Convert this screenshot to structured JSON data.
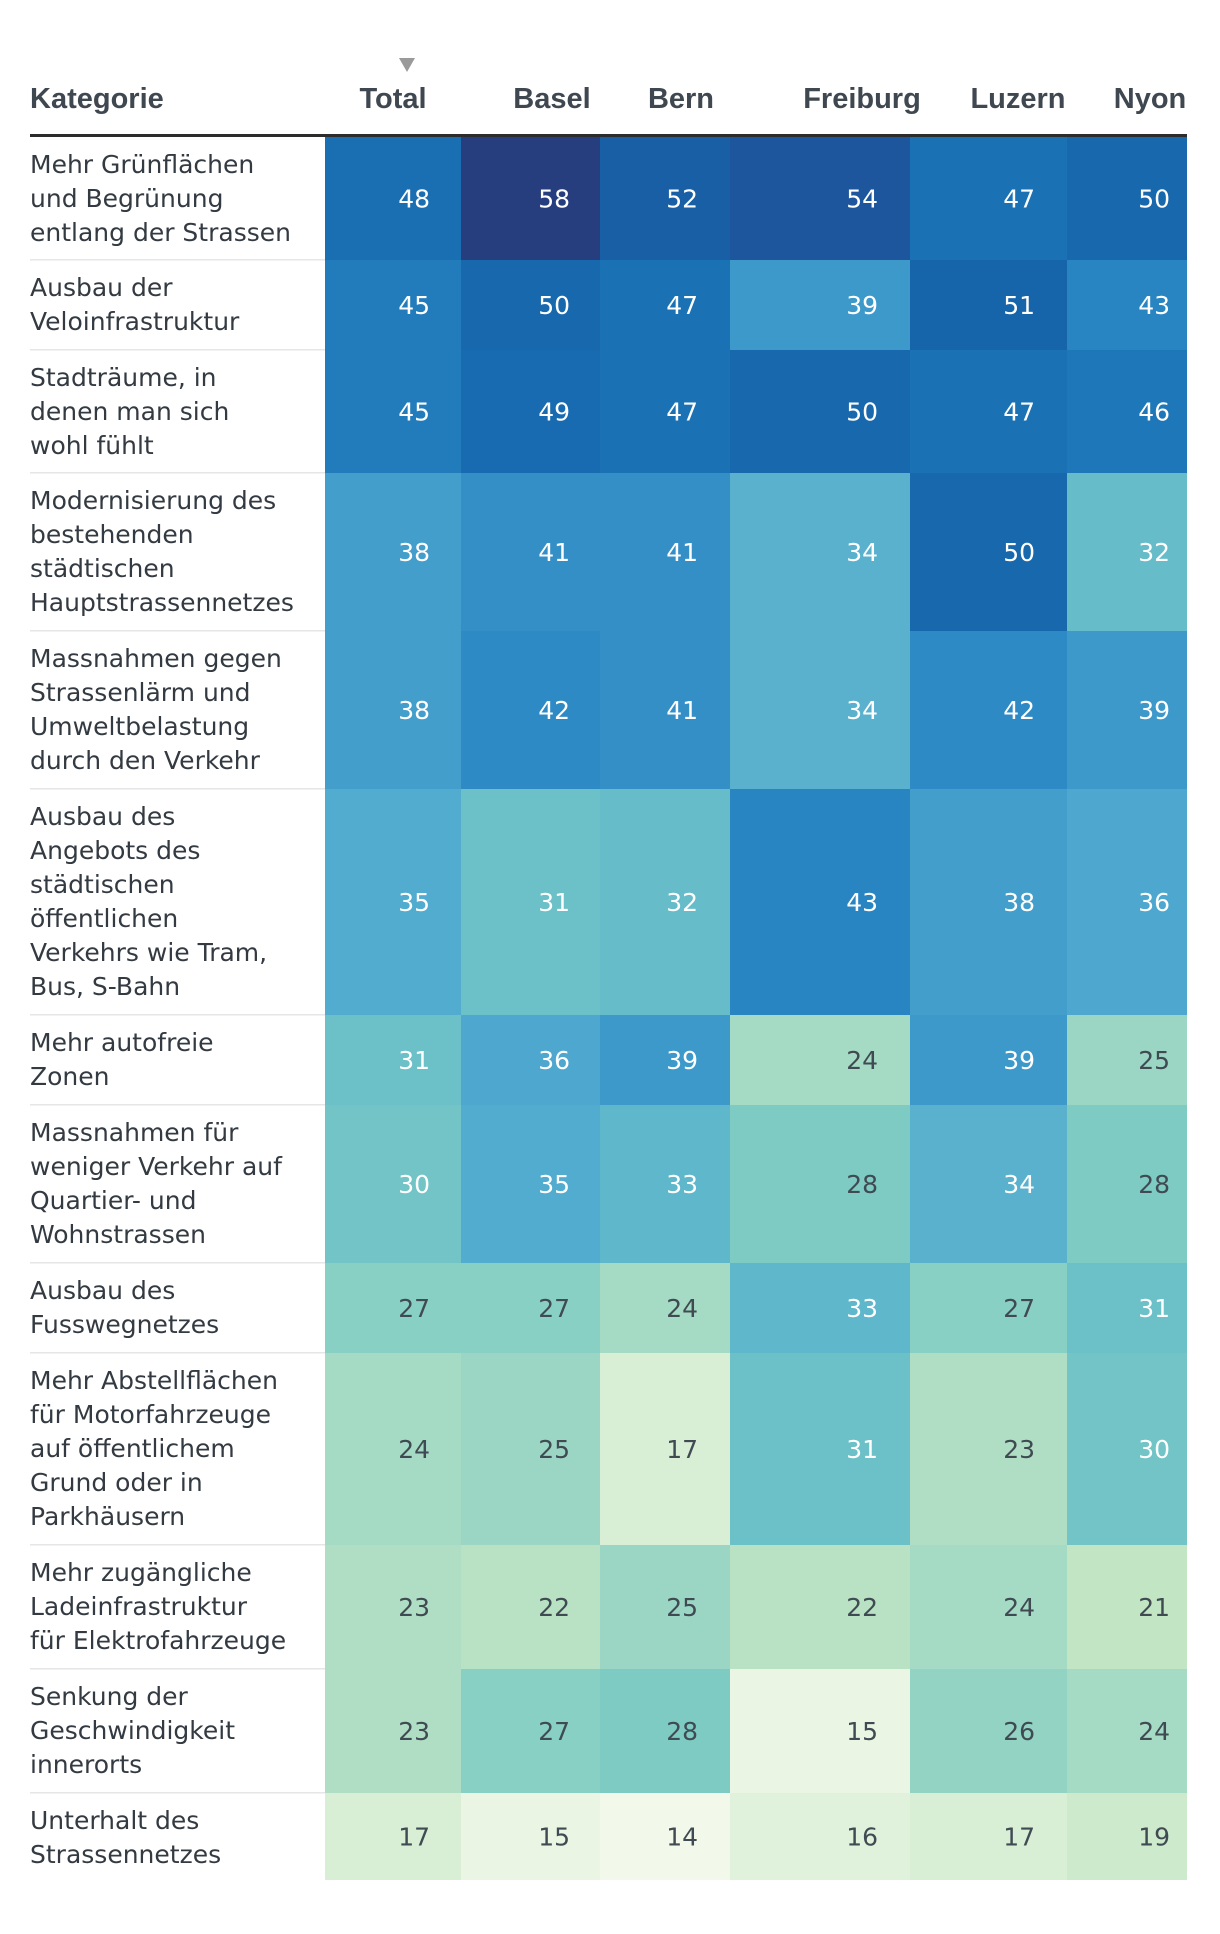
{
  "chart_data": {
    "type": "heatmap",
    "header_first": "Kategorie",
    "columns": [
      "Total",
      "Basel",
      "Bern",
      "Freiburg",
      "Luzern",
      "Nyon"
    ],
    "sorted_column": "Total",
    "sort_direction": "descending",
    "sort_icon": "triangle-down-icon",
    "rows": [
      {
        "label": "Mehr Grünflächen und Begrünung entlang der Strassen",
        "lines": [
          "Mehr Grünflächen",
          "und Begrünung",
          "entlang der Strassen"
        ],
        "values": [
          48,
          58,
          52,
          54,
          47,
          50
        ]
      },
      {
        "label": "Ausbau der Veloinfrastruktur",
        "lines": [
          "Ausbau der",
          "Veloinfrastruktur"
        ],
        "values": [
          45,
          50,
          47,
          39,
          51,
          43
        ]
      },
      {
        "label": "Stadträume, in denen man sich wohl fühlt",
        "lines": [
          "Stadträume, in",
          "denen man sich",
          "wohl fühlt"
        ],
        "values": [
          45,
          49,
          47,
          50,
          47,
          46
        ]
      },
      {
        "label": "Modernisierung des bestehenden städtischen Hauptstrassennetzes",
        "lines": [
          "Modernisierung des",
          "bestehenden",
          "städtischen",
          "Hauptstrassennetzes"
        ],
        "values": [
          38,
          41,
          41,
          34,
          50,
          32
        ]
      },
      {
        "label": "Massnahmen gegen Strassenlärm und Umweltbelastung durch den Verkehr",
        "lines": [
          "Massnahmen gegen",
          "Strassenlärm und",
          "Umweltbelastung",
          "durch den Verkehr"
        ],
        "values": [
          38,
          42,
          41,
          34,
          42,
          39
        ]
      },
      {
        "label": "Ausbau des Angebots des städtischen öffentlichen Verkehrs wie Tram, Bus, S-Bahn",
        "lines": [
          "Ausbau des",
          "Angebots des",
          "städtischen",
          "öffentlichen",
          "Verkehrs wie Tram,",
          "Bus, S-Bahn"
        ],
        "values": [
          35,
          31,
          32,
          43,
          38,
          36
        ]
      },
      {
        "label": "Mehr autofreie Zonen",
        "lines": [
          "Mehr autofreie",
          "Zonen"
        ],
        "values": [
          31,
          36,
          39,
          24,
          39,
          25
        ]
      },
      {
        "label": "Massnahmen für weniger Verkehr auf Quartier- und Wohnstrassen",
        "lines": [
          "Massnahmen für",
          "weniger Verkehr auf",
          "Quartier- und",
          "Wohnstrassen"
        ],
        "values": [
          30,
          35,
          33,
          28,
          34,
          28
        ]
      },
      {
        "label": "Ausbau des Fusswegnetzes",
        "lines": [
          "Ausbau des",
          "Fusswegnetzes"
        ],
        "values": [
          27,
          27,
          24,
          33,
          27,
          31
        ]
      },
      {
        "label": "Mehr Abstellflächen für Motorfahrzeuge auf öffentlichem Grund oder in Parkhäusern",
        "lines": [
          "Mehr Abstellflächen",
          "für Motorfahrzeuge",
          "auf öffentlichem",
          "Grund oder in",
          "Parkhäusern"
        ],
        "values": [
          24,
          25,
          17,
          31,
          23,
          30
        ]
      },
      {
        "label": "Mehr zugängliche Ladeinfrastruktur für Elektrofahrzeuge",
        "lines": [
          "Mehr zugängliche",
          "Ladeinfrastruktur",
          "für Elektrofahrzeuge"
        ],
        "values": [
          23,
          22,
          25,
          22,
          24,
          21
        ]
      },
      {
        "label": "Senkung der Geschwindigkeit innerorts",
        "lines": [
          "Senkung der",
          "Geschwindigkeit",
          "innerorts"
        ],
        "values": [
          23,
          27,
          28,
          15,
          26,
          24
        ]
      },
      {
        "label": "Unterhalt des Strassennetzes",
        "lines": [
          "Unterhalt des",
          "Strassennetzes"
        ],
        "values": [
          17,
          15,
          14,
          16,
          17,
          19
        ]
      }
    ],
    "color_scale": {
      "stops": [
        {
          "value": 14,
          "color": "#f3f9ea"
        },
        {
          "value": 17,
          "color": "#d8eed5"
        },
        {
          "value": 21,
          "color": "#c2e6c3"
        },
        {
          "value": 24,
          "color": "#a5dac4"
        },
        {
          "value": 28,
          "color": "#7ecbc4"
        },
        {
          "value": 32,
          "color": "#66bcc9"
        },
        {
          "value": 35,
          "color": "#52acd0"
        },
        {
          "value": 39,
          "color": "#3e99cb"
        },
        {
          "value": 43,
          "color": "#2985c2"
        },
        {
          "value": 47,
          "color": "#1a72b5"
        },
        {
          "value": 51,
          "color": "#1664aa"
        },
        {
          "value": 55,
          "color": "#1f5199"
        },
        {
          "value": 58,
          "color": "#273e7e"
        }
      ],
      "text_dark": "#3f4a52",
      "text_light": "#ffffff"
    },
    "colors": {
      "header_text": "#3f4750",
      "label_text": "#333a41",
      "header_rule": "#2c2c2c",
      "row_divider": "#e6e6e6",
      "sort_icon": "#9a9a9a"
    }
  }
}
